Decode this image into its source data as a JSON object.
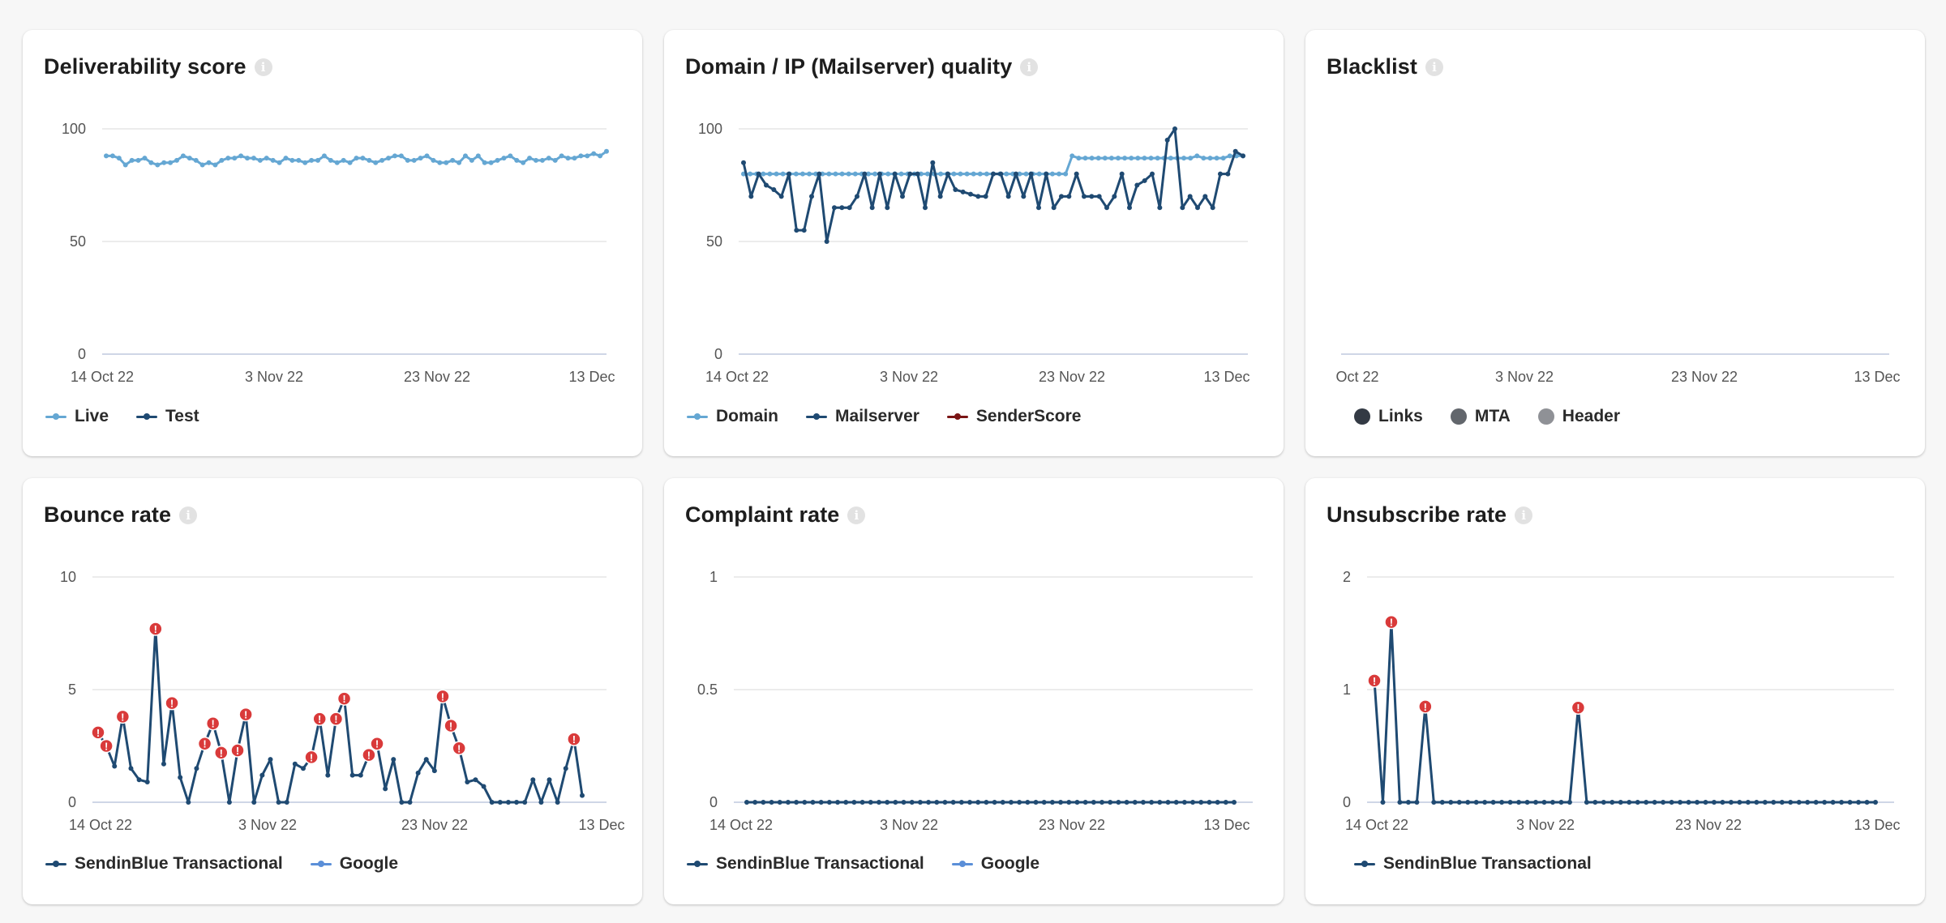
{
  "cards": [
    {
      "title": "Deliverability score",
      "legend": [
        {
          "label": "Live",
          "color": "#65a7d3"
        },
        {
          "label": "Test",
          "color": "#1f4a72"
        }
      ]
    },
    {
      "title": "Domain / IP (Mailserver) quality",
      "legend": [
        {
          "label": "Domain",
          "color": "#65a7d3"
        },
        {
          "label": "Mailserver",
          "color": "#1f4a72"
        },
        {
          "label": "SenderScore",
          "color": "#7a1515"
        }
      ]
    },
    {
      "title": "Blacklist",
      "legend": [
        {
          "label": "Links",
          "color": "#333a44"
        },
        {
          "label": "MTA",
          "color": "#62666c"
        },
        {
          "label": "Header",
          "color": "#8f9196"
        }
      ]
    },
    {
      "title": "Bounce rate",
      "legend": [
        {
          "label": "SendinBlue Transactional",
          "color": "#1f4a72"
        },
        {
          "label": "Google",
          "color": "#5b8fd8"
        }
      ]
    },
    {
      "title": "Complaint rate",
      "legend": [
        {
          "label": "SendinBlue Transactional",
          "color": "#1f4a72"
        },
        {
          "label": "Google",
          "color": "#5b8fd8"
        }
      ]
    },
    {
      "title": "Unsubscribe rate",
      "legend": [
        {
          "label": "SendinBlue Transactional",
          "color": "#1f4a72"
        }
      ]
    }
  ],
  "chart_data": [
    {
      "type": "line",
      "title": "Deliverability score",
      "xlabel": "",
      "ylabel": "",
      "x_ticks": [
        "14 Oct 22",
        "3 Nov 22",
        "23 Nov 22",
        "13 Dec"
      ],
      "y_ticks": [
        "0",
        "50",
        "100"
      ],
      "ylim": [
        0,
        100
      ],
      "grid": true,
      "legend_position": "bottom-left",
      "series": [
        {
          "name": "Live",
          "color": "#65a7d3",
          "values": [
            88,
            88,
            87,
            84,
            86,
            86,
            87,
            85,
            84,
            85,
            85,
            86,
            88,
            87,
            86,
            84,
            85,
            84,
            86,
            87,
            87,
            88,
            87,
            87,
            86,
            87,
            86,
            85,
            87,
            86,
            86,
            85,
            86,
            86,
            88,
            86,
            85,
            86,
            85,
            87,
            87,
            86,
            85,
            86,
            87,
            88,
            88,
            86,
            86,
            87,
            88,
            86,
            85,
            85,
            86,
            85,
            88,
            86,
            88,
            85,
            85,
            86,
            87,
            88,
            86,
            85,
            87,
            86,
            86,
            87,
            86,
            88,
            87,
            87,
            88,
            88,
            89,
            88,
            90
          ]
        },
        {
          "name": "Test",
          "color": "#1f4a72",
          "values": []
        }
      ]
    },
    {
      "type": "line",
      "title": "Domain / IP (Mailserver) quality",
      "xlabel": "",
      "ylabel": "",
      "x_ticks": [
        "14 Oct 22",
        "3 Nov 22",
        "23 Nov 22",
        "13 Dec"
      ],
      "y_ticks": [
        "0",
        "50",
        "100"
      ],
      "ylim": [
        0,
        100
      ],
      "grid": true,
      "legend_position": "bottom-left",
      "series": [
        {
          "name": "Domain",
          "color": "#65a7d3",
          "values": [
            80,
            80,
            80,
            80,
            80,
            80,
            80,
            80,
            80,
            80,
            80,
            80,
            80,
            80,
            80,
            80,
            80,
            80,
            80,
            80,
            80,
            80,
            80,
            80,
            80,
            80,
            80,
            80,
            80,
            80,
            80,
            80,
            80,
            80,
            80,
            80,
            80,
            80,
            80,
            80,
            80,
            80,
            80,
            80,
            80,
            80,
            80,
            80,
            80,
            80,
            88,
            87,
            87,
            87,
            87,
            87,
            87,
            87,
            87,
            87,
            87,
            87,
            87,
            87,
            87,
            87,
            87,
            87,
            87,
            88,
            87,
            87,
            87,
            87,
            88,
            88,
            88
          ]
        },
        {
          "name": "Mailserver",
          "color": "#1f4a72",
          "values": [
            85,
            70,
            80,
            75,
            73,
            70,
            80,
            55,
            55,
            70,
            80,
            50,
            65,
            65,
            65,
            70,
            80,
            65,
            80,
            65,
            80,
            70,
            80,
            80,
            65,
            85,
            70,
            80,
            73,
            72,
            71,
            70,
            70,
            80,
            80,
            70,
            80,
            70,
            80,
            65,
            80,
            65,
            70,
            70,
            80,
            70,
            70,
            70,
            65,
            70,
            80,
            65,
            75,
            77,
            80,
            65,
            95,
            100,
            65,
            70,
            65,
            70,
            65,
            80,
            80,
            90,
            88
          ]
        },
        {
          "name": "SenderScore",
          "color": "#7a1515",
          "values": []
        }
      ]
    },
    {
      "type": "line",
      "title": "Blacklist",
      "xlabel": "",
      "ylabel": "",
      "x_ticks": [
        "Oct 22",
        "3 Nov 22",
        "23 Nov 22",
        "13 Dec"
      ],
      "y_ticks": [],
      "grid": false,
      "legend_position": "bottom-left",
      "series": [
        {
          "name": "Links",
          "color": "#333a44",
          "values": []
        },
        {
          "name": "MTA",
          "color": "#62666c",
          "values": []
        },
        {
          "name": "Header",
          "color": "#8f9196",
          "values": []
        }
      ]
    },
    {
      "type": "line",
      "title": "Bounce rate",
      "xlabel": "",
      "ylabel": "",
      "x_ticks": [
        "14 Oct 22",
        "3 Nov 22",
        "23 Nov 22",
        "13 Dec"
      ],
      "y_ticks": [
        "0",
        "5",
        "10"
      ],
      "ylim": [
        0,
        10
      ],
      "grid": true,
      "legend_position": "bottom-left",
      "series": [
        {
          "name": "SendinBlue Transactional",
          "color": "#1f4a72",
          "values": [
            3.1,
            2.5,
            1.6,
            3.8,
            1.5,
            1.0,
            0.9,
            7.7,
            1.7,
            4.4,
            1.1,
            0.0,
            1.5,
            2.6,
            3.5,
            2.2,
            0.0,
            2.3,
            3.9,
            0.0,
            1.2,
            1.9,
            0.0,
            0.0,
            1.7,
            1.5,
            2.0,
            3.7,
            1.2,
            3.7,
            4.6,
            1.2,
            1.2,
            2.1,
            2.6,
            0.6,
            1.9,
            0.0,
            0.0,
            1.3,
            1.9,
            1.4,
            4.7,
            3.4,
            2.4,
            0.9,
            1.0,
            0.7,
            0.0,
            0.0,
            0.0,
            0.0,
            0.0,
            1.0,
            0.0,
            1.0,
            0.0,
            1.5,
            2.8,
            0.3
          ],
          "alerts": [
            0,
            1,
            3,
            7,
            9,
            13,
            14,
            15,
            17,
            18,
            26,
            27,
            29,
            30,
            33,
            34,
            42,
            43,
            44,
            58
          ]
        },
        {
          "name": "Google",
          "color": "#5b8fd8",
          "values": []
        }
      ]
    },
    {
      "type": "line",
      "title": "Complaint rate",
      "xlabel": "",
      "ylabel": "",
      "x_ticks": [
        "14 Oct 22",
        "3 Nov 22",
        "23 Nov 22",
        "13 Dec"
      ],
      "y_ticks": [
        "0",
        "0.5",
        "1"
      ],
      "ylim": [
        0,
        1
      ],
      "grid": true,
      "legend_position": "bottom-left",
      "series": [
        {
          "name": "SendinBlue Transactional",
          "color": "#1f4a72",
          "values": [
            0,
            0,
            0,
            0,
            0,
            0,
            0,
            0,
            0,
            0,
            0,
            0,
            0,
            0,
            0,
            0,
            0,
            0,
            0,
            0,
            0,
            0,
            0,
            0,
            0,
            0,
            0,
            0,
            0,
            0,
            0,
            0,
            0,
            0,
            0,
            0,
            0,
            0,
            0,
            0,
            0,
            0,
            0,
            0,
            0,
            0,
            0,
            0,
            0,
            0,
            0,
            0,
            0,
            0,
            0,
            0,
            0,
            0,
            0,
            0
          ]
        },
        {
          "name": "Google",
          "color": "#5b8fd8",
          "values": []
        }
      ]
    },
    {
      "type": "line",
      "title": "Unsubscribe rate",
      "xlabel": "",
      "ylabel": "",
      "x_ticks": [
        "14 Oct 22",
        "3 Nov 22",
        "23 Nov 22",
        "13 Dec"
      ],
      "y_ticks": [
        "0",
        "1",
        "2"
      ],
      "ylim": [
        0,
        2
      ],
      "grid": true,
      "legend_position": "bottom-left",
      "series": [
        {
          "name": "SendinBlue Transactional",
          "color": "#1f4a72",
          "values": [
            1.08,
            0.0,
            1.6,
            0.0,
            0.0,
            0.0,
            0.85,
            0.0,
            0.0,
            0.0,
            0.0,
            0.0,
            0.0,
            0.0,
            0.0,
            0.0,
            0.0,
            0.0,
            0.0,
            0.0,
            0.0,
            0.0,
            0.0,
            0.0,
            0.84,
            0.0,
            0.0,
            0.0,
            0.0,
            0.0,
            0.0,
            0.0,
            0.0,
            0.0,
            0.0,
            0.0,
            0.0,
            0.0,
            0.0,
            0.0,
            0.0,
            0.0,
            0.0,
            0.0,
            0.0,
            0.0,
            0.0,
            0.0,
            0.0,
            0.0,
            0.0,
            0.0,
            0.0,
            0.0,
            0.0,
            0.0,
            0.0,
            0.0,
            0.0,
            0.0
          ],
          "alerts": [
            0,
            2,
            6,
            24
          ]
        }
      ]
    }
  ]
}
